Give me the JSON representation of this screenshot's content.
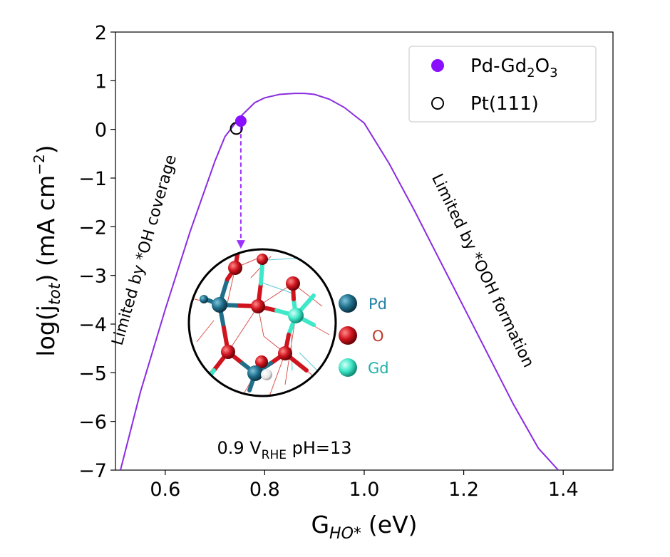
{
  "chart_data": {
    "type": "line",
    "xlabel": {
      "main": "G",
      "sub": "HO*",
      "unit": "(eV)"
    },
    "ylabel": {
      "pre": "log(j",
      "sub": "tot",
      "post": ") (mA cm",
      "sup": "−2",
      "end": ")"
    },
    "xlim": [
      0.5,
      1.5
    ],
    "ylim": [
      -7,
      2
    ],
    "xticks": [
      0.6,
      0.8,
      1.0,
      1.2,
      1.4
    ],
    "xtick_labels": [
      "0.6",
      "0.8",
      "1.0",
      "1.2",
      "1.4"
    ],
    "yticks": [
      2,
      1,
      0,
      -1,
      -2,
      -3,
      -4,
      -5,
      -6,
      -7
    ],
    "ytick_labels": [
      "2",
      "1",
      "0",
      "−1",
      "−2",
      "−3",
      "−4",
      "−5",
      "−6",
      "−7"
    ],
    "series": [
      {
        "name": "volcano",
        "color": "#8a2be2",
        "x": [
          0.51,
          0.55,
          0.6,
          0.65,
          0.7,
          0.72,
          0.75,
          0.78,
          0.8,
          0.83,
          0.86,
          0.88,
          0.9,
          0.93,
          0.96,
          1.0,
          1.05,
          1.1,
          1.15,
          1.2,
          1.25,
          1.3,
          1.35,
          1.39
        ],
        "y": [
          -7.0,
          -5.4,
          -3.7,
          -2.1,
          -0.65,
          -0.15,
          0.25,
          0.55,
          0.65,
          0.72,
          0.74,
          0.74,
          0.72,
          0.62,
          0.45,
          0.13,
          -0.7,
          -1.65,
          -2.65,
          -3.65,
          -4.65,
          -5.65,
          -6.55,
          -7.0
        ]
      }
    ],
    "points": [
      {
        "name": "Pd-Gd2O3",
        "x": 0.752,
        "y": 0.17,
        "fill": "#8a0eff",
        "edge": "#8a0eff"
      },
      {
        "name": "Pt(111)",
        "x": 0.743,
        "y": 0.02,
        "fill": "none",
        "edge": "#000000"
      }
    ],
    "legend": {
      "position": "top-right",
      "entries": [
        {
          "label": "Pd-Gd",
          "sub1": "2",
          "mid": "O",
          "sub2": "3"
        },
        {
          "label": "Pt(111)"
        }
      ]
    },
    "annotations": {
      "left_region": "Limited by *OH coverage",
      "right_region": "Limited by *OOH formation",
      "condition": {
        "pre": "0.9 V",
        "sub": "RHE",
        "post": " pH=13"
      }
    },
    "arrow": {
      "from": [
        0.752,
        0.05
      ],
      "to": [
        0.752,
        -2.45
      ],
      "color": "#9b30ff"
    },
    "inset_key": [
      {
        "label": "Pd",
        "color": "#1f6f8b",
        "text_color": "#1f7fa0"
      },
      {
        "label": "O",
        "color": "#c8141e",
        "text_color": "#c0392b"
      },
      {
        "label": "Gd",
        "color": "#3ee8c8",
        "text_color": "#20b2aa"
      }
    ]
  }
}
